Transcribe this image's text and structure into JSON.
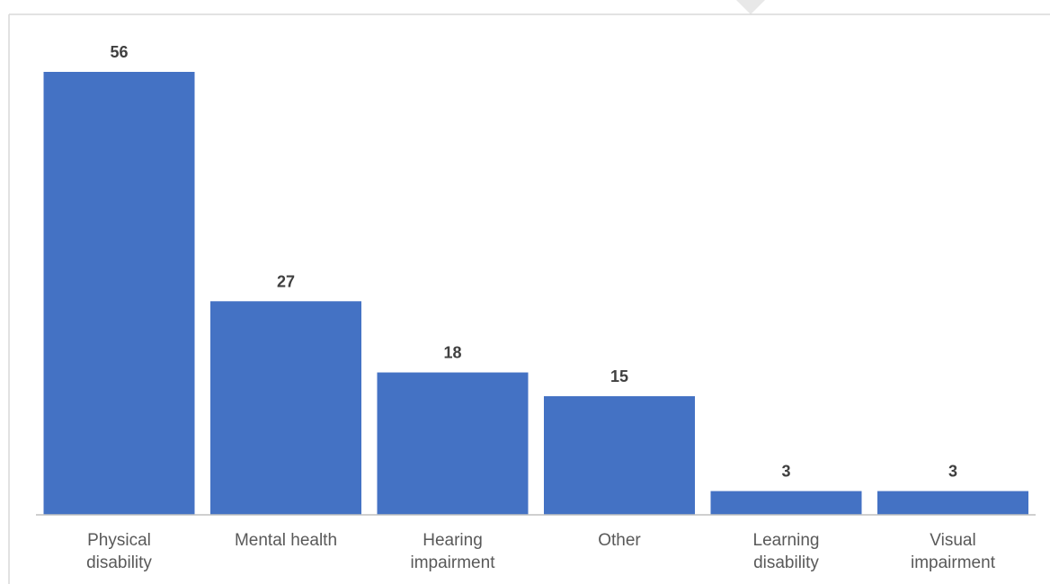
{
  "chart_data": {
    "type": "bar",
    "categories": [
      [
        "Physical",
        "disability"
      ],
      [
        "Mental health"
      ],
      [
        "Hearing",
        "impairment"
      ],
      [
        "Other"
      ],
      [
        "Learning",
        "disability"
      ],
      [
        "Visual",
        "impairment"
      ]
    ],
    "values": [
      56,
      27,
      18,
      15,
      3,
      3
    ],
    "title": "",
    "xlabel": "",
    "ylabel": "",
    "ylim": [
      0,
      56
    ],
    "grid": false,
    "legend": "none",
    "colors": {
      "bar": "#4472C4",
      "axis": "#BFBFBF",
      "frame": "#D9D9D9",
      "data_label": "#404040",
      "category_label": "#595959",
      "background": "#FFFFFF"
    }
  }
}
